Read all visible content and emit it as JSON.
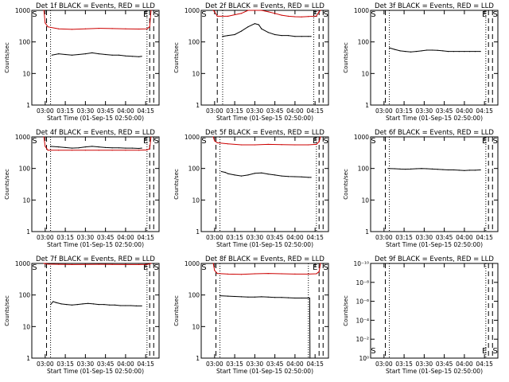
{
  "chart_data": [
    {
      "type": "line",
      "title": "Det 1f BLACK = Events, RED = LLD",
      "xlabel": "Start Time (01-Sep-15 02:50:00)",
      "ylabel": "Counts/sec",
      "yscale": "log",
      "ylim": [
        1,
        1000
      ],
      "yticks": [
        "1",
        "10",
        "100",
        "1000"
      ],
      "xticks": [
        "03:00",
        "03:15",
        "03:30",
        "03:45",
        "04:00",
        "04:15"
      ],
      "xlim_minutes": [
        0,
        95
      ],
      "markers": [
        "S",
        "E",
        "S"
      ],
      "dashed_lines_min": [
        11,
        88,
        91
      ],
      "dotted_lines_min": [
        14,
        86
      ],
      "series": [
        {
          "name": "LLD",
          "color": "#cc0000",
          "x": [
            9,
            10,
            12,
            20,
            30,
            40,
            50,
            60,
            70,
            80,
            86,
            88,
            89
          ],
          "y": [
            1000,
            400,
            300,
            260,
            250,
            260,
            270,
            265,
            260,
            255,
            260,
            300,
            1000
          ]
        },
        {
          "name": "Events",
          "color": "#000000",
          "x": [
            15,
            20,
            25,
            30,
            35,
            40,
            45,
            50,
            55,
            60,
            65,
            70,
            75,
            80,
            82
          ],
          "y": [
            38,
            42,
            40,
            38,
            40,
            42,
            45,
            42,
            40,
            38,
            38,
            36,
            35,
            34,
            35
          ]
        }
      ]
    },
    {
      "type": "line",
      "title": "Det 2f BLACK = Events, RED = LLD",
      "xlabel": "Start Time (01-Sep-15 02:50:00)",
      "ylabel": "Counts/sec",
      "yscale": "log",
      "ylim": [
        1,
        1000
      ],
      "yticks": [
        "1",
        "10",
        "100",
        "1000"
      ],
      "xticks": [
        "03:00",
        "03:15",
        "03:30",
        "03:45",
        "04:00",
        "04:15"
      ],
      "xlim_minutes": [
        0,
        95
      ],
      "markers": [
        "S",
        "E",
        "S"
      ],
      "dashed_lines_min": [
        12,
        88,
        91
      ],
      "dotted_lines_min": [
        16,
        84
      ],
      "series": [
        {
          "name": "LLD",
          "color": "#cc0000",
          "x": [
            9,
            10,
            12,
            20,
            30,
            35,
            40,
            45,
            50,
            55,
            60,
            65,
            70,
            75,
            80,
            86,
            88,
            89
          ],
          "y": [
            1000,
            900,
            650,
            650,
            800,
            1100,
            1300,
            1000,
            900,
            800,
            700,
            650,
            630,
            620,
            640,
            660,
            900,
            1000
          ]
        },
        {
          "name": "Events",
          "color": "#000000",
          "x": [
            16,
            20,
            25,
            30,
            35,
            40,
            43,
            45,
            50,
            55,
            60,
            65,
            70,
            75,
            80,
            82
          ],
          "y": [
            150,
            160,
            170,
            220,
            300,
            380,
            350,
            260,
            200,
            170,
            160,
            160,
            150,
            150,
            150,
            150
          ]
        }
      ]
    },
    {
      "type": "line",
      "title": "Det 3f BLACK = Events, RED = LLD",
      "xlabel": "Start Time (01-Sep-15 02:50:00)",
      "ylabel": "Counts/sec",
      "yscale": "log",
      "ylim": [
        1,
        1000
      ],
      "yticks": [
        "1",
        "10",
        "100",
        "1000"
      ],
      "xticks": [
        "03:00",
        "03:15",
        "03:30",
        "03:45",
        "04:00",
        "04:15"
      ],
      "xlim_minutes": [
        0,
        95
      ],
      "markers": [
        "S",
        "E",
        "S"
      ],
      "dashed_lines_min": [
        11,
        88,
        91
      ],
      "dotted_lines_min": [
        14,
        86
      ],
      "series": [
        {
          "name": "Events",
          "color": "#000000",
          "x": [
            14,
            18,
            22,
            26,
            30,
            34,
            38,
            42,
            46,
            50,
            54,
            58,
            62,
            66,
            70,
            74,
            78,
            82
          ],
          "y": [
            65,
            58,
            52,
            50,
            48,
            50,
            52,
            55,
            55,
            54,
            52,
            50,
            50,
            50,
            50,
            50,
            50,
            50
          ]
        }
      ]
    },
    {
      "type": "line",
      "title": "Det 4f BLACK = Events, RED = LLD",
      "xlabel": "Start Time (01-Sep-15 02:50:00)",
      "ylabel": "Counts/sec",
      "yscale": "log",
      "ylim": [
        1,
        1000
      ],
      "yticks": [
        "1",
        "10",
        "100",
        "1000"
      ],
      "xticks": [
        "03:00",
        "03:15",
        "03:30",
        "03:45",
        "04:00",
        "04:15"
      ],
      "xlim_minutes": [
        0,
        95
      ],
      "markers": [
        "S",
        "E",
        "S"
      ],
      "dashed_lines_min": [
        11,
        88,
        91
      ],
      "dotted_lines_min": [
        14,
        86
      ],
      "series": [
        {
          "name": "LLD",
          "color": "#cc0000",
          "x": [
            9,
            10,
            12,
            20,
            30,
            40,
            50,
            60,
            70,
            80,
            86,
            88,
            89
          ],
          "y": [
            1000,
            500,
            380,
            380,
            380,
            380,
            380,
            380,
            380,
            380,
            385,
            420,
            1000
          ]
        },
        {
          "name": "Events",
          "color": "#000000",
          "x": [
            14,
            20,
            25,
            30,
            35,
            40,
            45,
            50,
            55,
            60,
            65,
            70,
            75,
            80,
            82
          ],
          "y": [
            500,
            480,
            460,
            440,
            450,
            480,
            500,
            480,
            460,
            450,
            450,
            440,
            440,
            430,
            440
          ]
        }
      ]
    },
    {
      "type": "line",
      "title": "Det 5f BLACK = Events, RED = LLD",
      "xlabel": "Start Time (01-Sep-15 02:50:00)",
      "ylabel": "Counts/sec",
      "yscale": "log",
      "ylim": [
        1,
        1000
      ],
      "yticks": [
        "1",
        "10",
        "100",
        "1000"
      ],
      "xticks": [
        "03:00",
        "03:15",
        "03:30",
        "03:45",
        "04:00",
        "04:15"
      ],
      "xlim_minutes": [
        0,
        95
      ],
      "markers": [
        "S",
        "E",
        "S"
      ],
      "dashed_lines_min": [
        11,
        88,
        91
      ],
      "dotted_lines_min": [
        14,
        86
      ],
      "series": [
        {
          "name": "LLD",
          "color": "#cc0000",
          "x": [
            9,
            10,
            12,
            20,
            30,
            40,
            50,
            60,
            70,
            80,
            86,
            88,
            89
          ],
          "y": [
            1000,
            750,
            650,
            600,
            560,
            560,
            580,
            570,
            560,
            560,
            580,
            700,
            1000
          ]
        },
        {
          "name": "Events",
          "color": "#000000",
          "x": [
            15,
            18,
            20,
            25,
            30,
            35,
            40,
            45,
            50,
            55,
            60,
            65,
            70,
            75,
            80,
            82
          ],
          "y": [
            80,
            75,
            68,
            62,
            58,
            62,
            70,
            72,
            66,
            62,
            58,
            56,
            55,
            54,
            52,
            52
          ]
        }
      ]
    },
    {
      "type": "line",
      "title": "Det 6f BLACK = Events, RED = LLD",
      "xlabel": "Start Time (01-Sep-15 02:50:00)",
      "ylabel": "Counts/sec",
      "yscale": "log",
      "ylim": [
        1,
        1000
      ],
      "yticks": [
        "1",
        "10",
        "100",
        "1000"
      ],
      "xticks": [
        "03:00",
        "03:15",
        "03:30",
        "03:45",
        "04:00",
        "04:15"
      ],
      "xlim_minutes": [
        0,
        95
      ],
      "markers": [
        "S",
        "E",
        "S"
      ],
      "dashed_lines_min": [
        11,
        88,
        91
      ],
      "dotted_lines_min": [
        14,
        86
      ],
      "series": [
        {
          "name": "Events",
          "color": "#000000",
          "x": [
            13,
            18,
            22,
            26,
            30,
            34,
            38,
            42,
            46,
            50,
            54,
            58,
            62,
            66,
            70,
            74,
            78,
            82
          ],
          "y": [
            100,
            98,
            96,
            95,
            96,
            98,
            100,
            98,
            96,
            94,
            92,
            90,
            90,
            88,
            86,
            88,
            88,
            90
          ]
        }
      ]
    },
    {
      "type": "line",
      "title": "Det 7f BLACK = Events, RED = LLD",
      "xlabel": "Start Time (01-Sep-15 02:50:00)",
      "ylabel": "Counts/sec",
      "yscale": "log",
      "ylim": [
        1,
        1000
      ],
      "yticks": [
        "1",
        "10",
        "100",
        "1000"
      ],
      "xticks": [
        "03:00",
        "03:15",
        "03:30",
        "03:45",
        "04:00",
        "04:15"
      ],
      "xlim_minutes": [
        0,
        95
      ],
      "markers": [
        "S",
        "E",
        "S"
      ],
      "dashed_lines_min": [
        11,
        88,
        91
      ],
      "dotted_lines_min": [
        14,
        86
      ],
      "series": [
        {
          "name": "LLD",
          "color": "#cc0000",
          "x": [
            9,
            10,
            12,
            20,
            30,
            40,
            50,
            60,
            70,
            80,
            86,
            88,
            89
          ],
          "y": [
            1000,
            980,
            950,
            940,
            920,
            930,
            940,
            930,
            920,
            920,
            930,
            960,
            1000
          ]
        },
        {
          "name": "Events",
          "color": "#000000",
          "x": [
            14,
            16,
            18,
            22,
            26,
            30,
            34,
            38,
            42,
            46,
            50,
            54,
            58,
            62,
            66,
            70,
            74,
            78,
            82
          ],
          "y": [
            50,
            62,
            58,
            52,
            50,
            48,
            50,
            52,
            54,
            52,
            50,
            50,
            48,
            48,
            46,
            46,
            46,
            45,
            45
          ]
        }
      ]
    },
    {
      "type": "line",
      "title": "Det 8f BLACK = Events, RED = LLD",
      "xlabel": "Start Time (01-Sep-15 02:50:00)",
      "ylabel": "Counts/sec",
      "yscale": "log",
      "ylim": [
        1,
        1000
      ],
      "yticks": [
        "1",
        "10",
        "100",
        "1000"
      ],
      "xticks": [
        "03:00",
        "03:15",
        "03:30",
        "03:45",
        "04:00",
        "04:15"
      ],
      "xlim_minutes": [
        0,
        95
      ],
      "markers": [
        "S",
        "E",
        "S"
      ],
      "dashed_lines_min": [
        11,
        88,
        91
      ],
      "dotted_lines_min": [
        14,
        80
      ],
      "series": [
        {
          "name": "LLD",
          "color": "#cc0000",
          "x": [
            9,
            10,
            12,
            20,
            30,
            40,
            50,
            60,
            70,
            80,
            86,
            88,
            89
          ],
          "y": [
            1000,
            600,
            480,
            460,
            450,
            470,
            480,
            470,
            460,
            460,
            470,
            550,
            1000
          ]
        },
        {
          "name": "Events",
          "color": "#000000",
          "x": [
            14,
            20,
            25,
            30,
            35,
            40,
            45,
            50,
            55,
            60,
            65,
            70,
            75,
            80,
            81,
            81.2
          ],
          "y": [
            95,
            92,
            90,
            88,
            86,
            86,
            88,
            86,
            84,
            84,
            82,
            80,
            80,
            80,
            80,
            1
          ]
        }
      ]
    },
    {
      "type": "line",
      "title": "Det 9f BLACK = Events, RED = LLD",
      "xlabel": "Start Time (01-Sep-15 02:50:00)",
      "ylabel": "Counts/sec",
      "yscale": "log",
      "ylim": [
        1,
        1e-10
      ],
      "yticks": [
        "10⁰",
        "10⁻²",
        "10⁻⁴",
        "10⁻⁶",
        "10⁻⁸",
        "10⁻¹⁰"
      ],
      "xticks": [
        "03:00",
        "03:15",
        "03:30",
        "03:45",
        "04:00",
        "04:15"
      ],
      "xlim_minutes": [
        0,
        95
      ],
      "markers": [
        "S",
        "E",
        "S"
      ],
      "dashed_lines_min": [
        11,
        88,
        91
      ],
      "dotted_lines_min": [
        14,
        86
      ],
      "series": []
    }
  ]
}
